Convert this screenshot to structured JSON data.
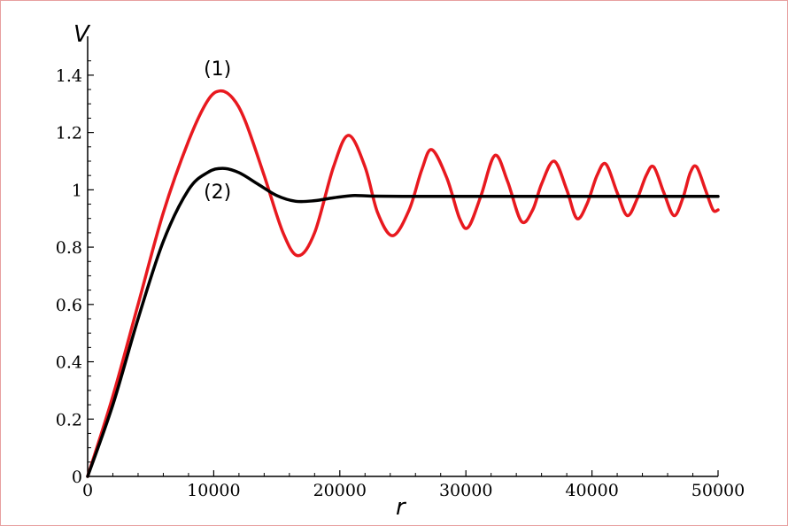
{
  "chart_data": {
    "type": "line",
    "title": "",
    "xlabel": "r",
    "ylabel": "V",
    "xlim": [
      0,
      50000
    ],
    "ylim": [
      0,
      1.5
    ],
    "grid": false,
    "legend": "none",
    "x_ticks": [
      0,
      10000,
      20000,
      30000,
      40000,
      50000
    ],
    "x_tick_labels": [
      "0",
      "10000",
      "20000",
      "30000",
      "40000",
      "50000"
    ],
    "y_ticks": [
      0,
      0.2,
      0.4,
      0.6,
      0.8,
      1.0,
      1.2,
      1.4
    ],
    "y_tick_labels": [
      "0",
      "0.2",
      "0.4",
      "0.6",
      "0.8",
      "1",
      "1.2",
      "1.4"
    ],
    "annotations": [
      {
        "text": "(1)",
        "x": 10300,
        "y": 1.4,
        "series": "(1)"
      },
      {
        "text": "(2)",
        "x": 10300,
        "y": 0.97,
        "series": "(2)"
      }
    ],
    "series": [
      {
        "name": "(1)",
        "color": "#e8191f",
        "points": [
          [
            0,
            0
          ],
          [
            2000,
            0.28
          ],
          [
            4000,
            0.6
          ],
          [
            6000,
            0.92
          ],
          [
            8000,
            1.17
          ],
          [
            9500,
            1.31
          ],
          [
            10500,
            1.345
          ],
          [
            11500,
            1.32
          ],
          [
            12500,
            1.24
          ],
          [
            14000,
            1.05
          ],
          [
            15500,
            0.85
          ],
          [
            16700,
            0.77
          ],
          [
            18000,
            0.85
          ],
          [
            19500,
            1.08
          ],
          [
            20700,
            1.19
          ],
          [
            22000,
            1.08
          ],
          [
            23000,
            0.92
          ],
          [
            24200,
            0.84
          ],
          [
            25500,
            0.93
          ],
          [
            26500,
            1.07
          ],
          [
            27300,
            1.14
          ],
          [
            28500,
            1.04
          ],
          [
            29500,
            0.9
          ],
          [
            30200,
            0.87
          ],
          [
            31200,
            0.98
          ],
          [
            32300,
            1.12
          ],
          [
            33300,
            1.03
          ],
          [
            34400,
            0.89
          ],
          [
            35300,
            0.93
          ],
          [
            36000,
            1.02
          ],
          [
            37000,
            1.1
          ],
          [
            38000,
            1.0
          ],
          [
            38800,
            0.9
          ],
          [
            39600,
            0.95
          ],
          [
            40400,
            1.05
          ],
          [
            41100,
            1.09
          ],
          [
            42000,
            0.99
          ],
          [
            42800,
            0.91
          ],
          [
            43600,
            0.97
          ],
          [
            44300,
            1.05
          ],
          [
            44900,
            1.08
          ],
          [
            45700,
            0.99
          ],
          [
            46500,
            0.91
          ],
          [
            47200,
            0.97
          ],
          [
            47800,
            1.06
          ],
          [
            48300,
            1.08
          ],
          [
            49000,
            1.0
          ],
          [
            49600,
            0.93
          ],
          [
            50000,
            0.93
          ]
        ]
      },
      {
        "name": "(2)",
        "color": "#000000",
        "points": [
          [
            0,
            0
          ],
          [
            2000,
            0.25
          ],
          [
            4000,
            0.55
          ],
          [
            6000,
            0.82
          ],
          [
            8000,
            1.0
          ],
          [
            9500,
            1.06
          ],
          [
            10700,
            1.075
          ],
          [
            12000,
            1.06
          ],
          [
            13500,
            1.02
          ],
          [
            15000,
            0.98
          ],
          [
            16500,
            0.96
          ],
          [
            18000,
            0.962
          ],
          [
            19500,
            0.972
          ],
          [
            21000,
            0.98
          ],
          [
            22500,
            0.978
          ],
          [
            25000,
            0.977
          ],
          [
            30000,
            0.977
          ],
          [
            35000,
            0.977
          ],
          [
            40000,
            0.977
          ],
          [
            45000,
            0.977
          ],
          [
            50000,
            0.977
          ]
        ]
      }
    ]
  }
}
